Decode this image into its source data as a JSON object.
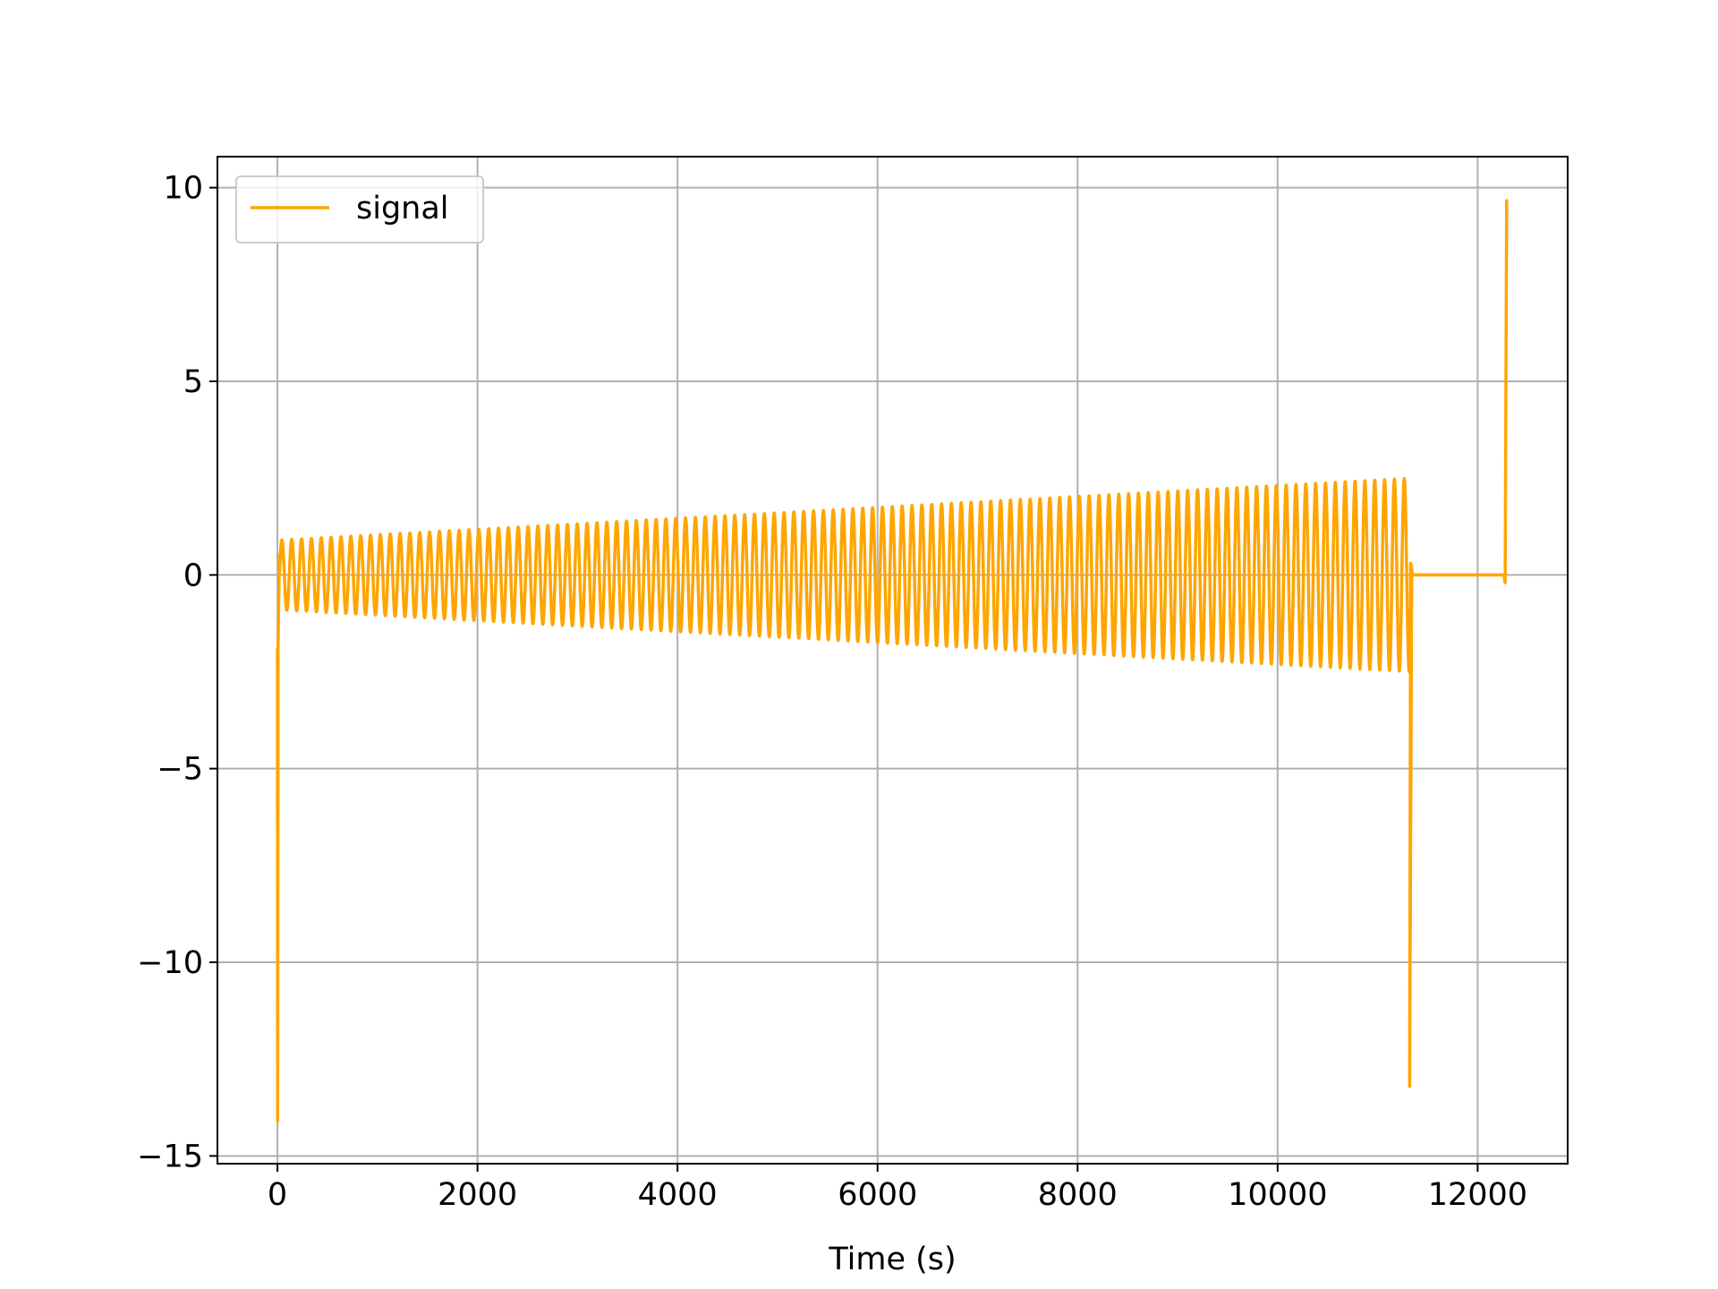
{
  "chart_data": {
    "type": "line",
    "title": "",
    "xlabel": "Time (s)",
    "ylabel": "",
    "xlim": [
      -600,
      12900
    ],
    "ylim": [
      -15.2,
      10.8
    ],
    "xticks": [
      0,
      2000,
      4000,
      6000,
      8000,
      10000,
      12000
    ],
    "xtick_labels": [
      "0",
      "2000",
      "4000",
      "6000",
      "8000",
      "10000",
      "12000"
    ],
    "yticks": [
      -15,
      -10,
      -5,
      0,
      5,
      10
    ],
    "ytick_labels": [
      "−15",
      "−10",
      "−5",
      "0",
      "5",
      "10"
    ],
    "grid": true,
    "legend": {
      "placement": "top-left",
      "entries": [
        "signal"
      ]
    },
    "series": [
      {
        "name": "signal",
        "color": "#FFA500",
        "description_of_shape": "oscillation with growing amplitude",
        "breakpoints": {
          "start_time": 0,
          "initial_value": -1.9,
          "initial_spike_min": -14.1,
          "oscillation_start": 20,
          "oscillation_end": 11340,
          "oscillation_cycles": 115,
          "amplitude_start": 0.9,
          "amplitude_end": 2.5,
          "end_spike_time": 11320,
          "end_spike_min": -13.2,
          "flat_start": 11380,
          "flat_value": 0.0,
          "flat_end": 12260,
          "final_dip": -0.2,
          "final_time": 12290,
          "final_value": 9.7
        }
      }
    ]
  }
}
